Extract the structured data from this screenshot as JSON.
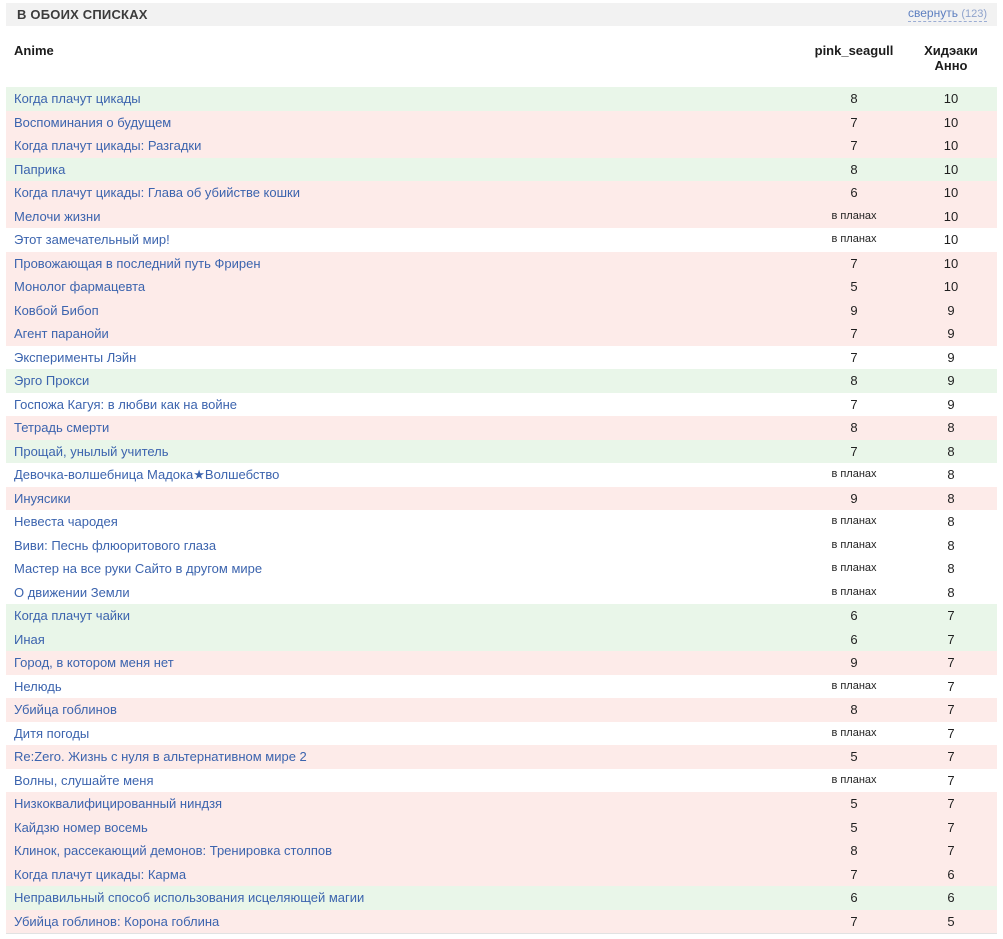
{
  "section": {
    "title": "В ОБОИХ СПИСКАХ",
    "collapse_label": "свернуть",
    "collapse_count": "(123)"
  },
  "colors": {
    "link_blue": "#3c64ae",
    "row_green": "#e9f6e9",
    "row_pink": "#fdebe9",
    "row_white": "#ffffff",
    "header_bar": "#f2f2f2"
  },
  "table": {
    "columns": {
      "anime": "Anime",
      "user1": "pink_seagull",
      "user2": "Хидэаки Анно"
    },
    "planned_label": "в планах",
    "rows": [
      {
        "title": "Когда плачут цикады",
        "user1": "8",
        "user2": "10",
        "tone": "green"
      },
      {
        "title": "Воспоминания о будущем",
        "user1": "7",
        "user2": "10",
        "tone": "pink"
      },
      {
        "title": "Когда плачут цикады: Разгадки",
        "user1": "7",
        "user2": "10",
        "tone": "pink"
      },
      {
        "title": "Паприка",
        "user1": "8",
        "user2": "10",
        "tone": "green"
      },
      {
        "title": "Когда плачут цикады: Глава об убийстве кошки",
        "user1": "6",
        "user2": "10",
        "tone": "pink"
      },
      {
        "title": "Мелочи жизни",
        "user1": "в планах",
        "user2": "10",
        "tone": "pink"
      },
      {
        "title": "Этот замечательный мир!",
        "user1": "в планах",
        "user2": "10",
        "tone": "white"
      },
      {
        "title": "Провожающая в последний путь Фрирен",
        "user1": "7",
        "user2": "10",
        "tone": "pink"
      },
      {
        "title": "Монолог фармацевта",
        "user1": "5",
        "user2": "10",
        "tone": "pink"
      },
      {
        "title": "Ковбой Бибоп",
        "user1": "9",
        "user2": "9",
        "tone": "pink"
      },
      {
        "title": "Агент паранойи",
        "user1": "7",
        "user2": "9",
        "tone": "pink"
      },
      {
        "title": "Эксперименты Лэйн",
        "user1": "7",
        "user2": "9",
        "tone": "white"
      },
      {
        "title": "Эрго Прокси",
        "user1": "8",
        "user2": "9",
        "tone": "green"
      },
      {
        "title": "Госпожа Кагуя: в любви как на войне",
        "user1": "7",
        "user2": "9",
        "tone": "white"
      },
      {
        "title": "Тетрадь смерти",
        "user1": "8",
        "user2": "8",
        "tone": "pink"
      },
      {
        "title": "Прощай, унылый учитель",
        "user1": "7",
        "user2": "8",
        "tone": "green"
      },
      {
        "title": "Девочка-волшебница Мадока★Волшебство",
        "user1": "в планах",
        "user2": "8",
        "tone": "white"
      },
      {
        "title": "Инуясики",
        "user1": "9",
        "user2": "8",
        "tone": "pink"
      },
      {
        "title": "Невеста чародея",
        "user1": "в планах",
        "user2": "8",
        "tone": "white"
      },
      {
        "title": "Виви: Песнь флюоритового глаза",
        "user1": "в планах",
        "user2": "8",
        "tone": "white"
      },
      {
        "title": "Мастер на все руки Сайто в другом мире",
        "user1": "в планах",
        "user2": "8",
        "tone": "white"
      },
      {
        "title": "О движении Земли",
        "user1": "в планах",
        "user2": "8",
        "tone": "white"
      },
      {
        "title": "Когда плачут чайки",
        "user1": "6",
        "user2": "7",
        "tone": "green"
      },
      {
        "title": "Иная",
        "user1": "6",
        "user2": "7",
        "tone": "green"
      },
      {
        "title": "Город, в котором меня нет",
        "user1": "9",
        "user2": "7",
        "tone": "pink"
      },
      {
        "title": "Нелюдь",
        "user1": "в планах",
        "user2": "7",
        "tone": "white"
      },
      {
        "title": "Убийца гоблинов",
        "user1": "8",
        "user2": "7",
        "tone": "pink"
      },
      {
        "title": "Дитя погоды",
        "user1": "в планах",
        "user2": "7",
        "tone": "white"
      },
      {
        "title": "Re:Zero. Жизнь с нуля в альтернативном мире 2",
        "user1": "5",
        "user2": "7",
        "tone": "pink"
      },
      {
        "title": "Волны, слушайте меня",
        "user1": "в планах",
        "user2": "7",
        "tone": "white"
      },
      {
        "title": "Низкоквалифицированный ниндзя",
        "user1": "5",
        "user2": "7",
        "tone": "pink"
      },
      {
        "title": "Кайдзю номер восемь",
        "user1": "5",
        "user2": "7",
        "tone": "pink"
      },
      {
        "title": "Клинок, рассекающий демонов: Тренировка столпов",
        "user1": "8",
        "user2": "7",
        "tone": "pink"
      },
      {
        "title": "Когда плачут цикады: Карма",
        "user1": "7",
        "user2": "6",
        "tone": "pink"
      },
      {
        "title": "Неправильный способ использования исцеляющей магии",
        "user1": "6",
        "user2": "6",
        "tone": "green"
      },
      {
        "title": "Убийца гоблинов: Корона гоблина",
        "user1": "7",
        "user2": "5",
        "tone": "pink"
      }
    ]
  }
}
